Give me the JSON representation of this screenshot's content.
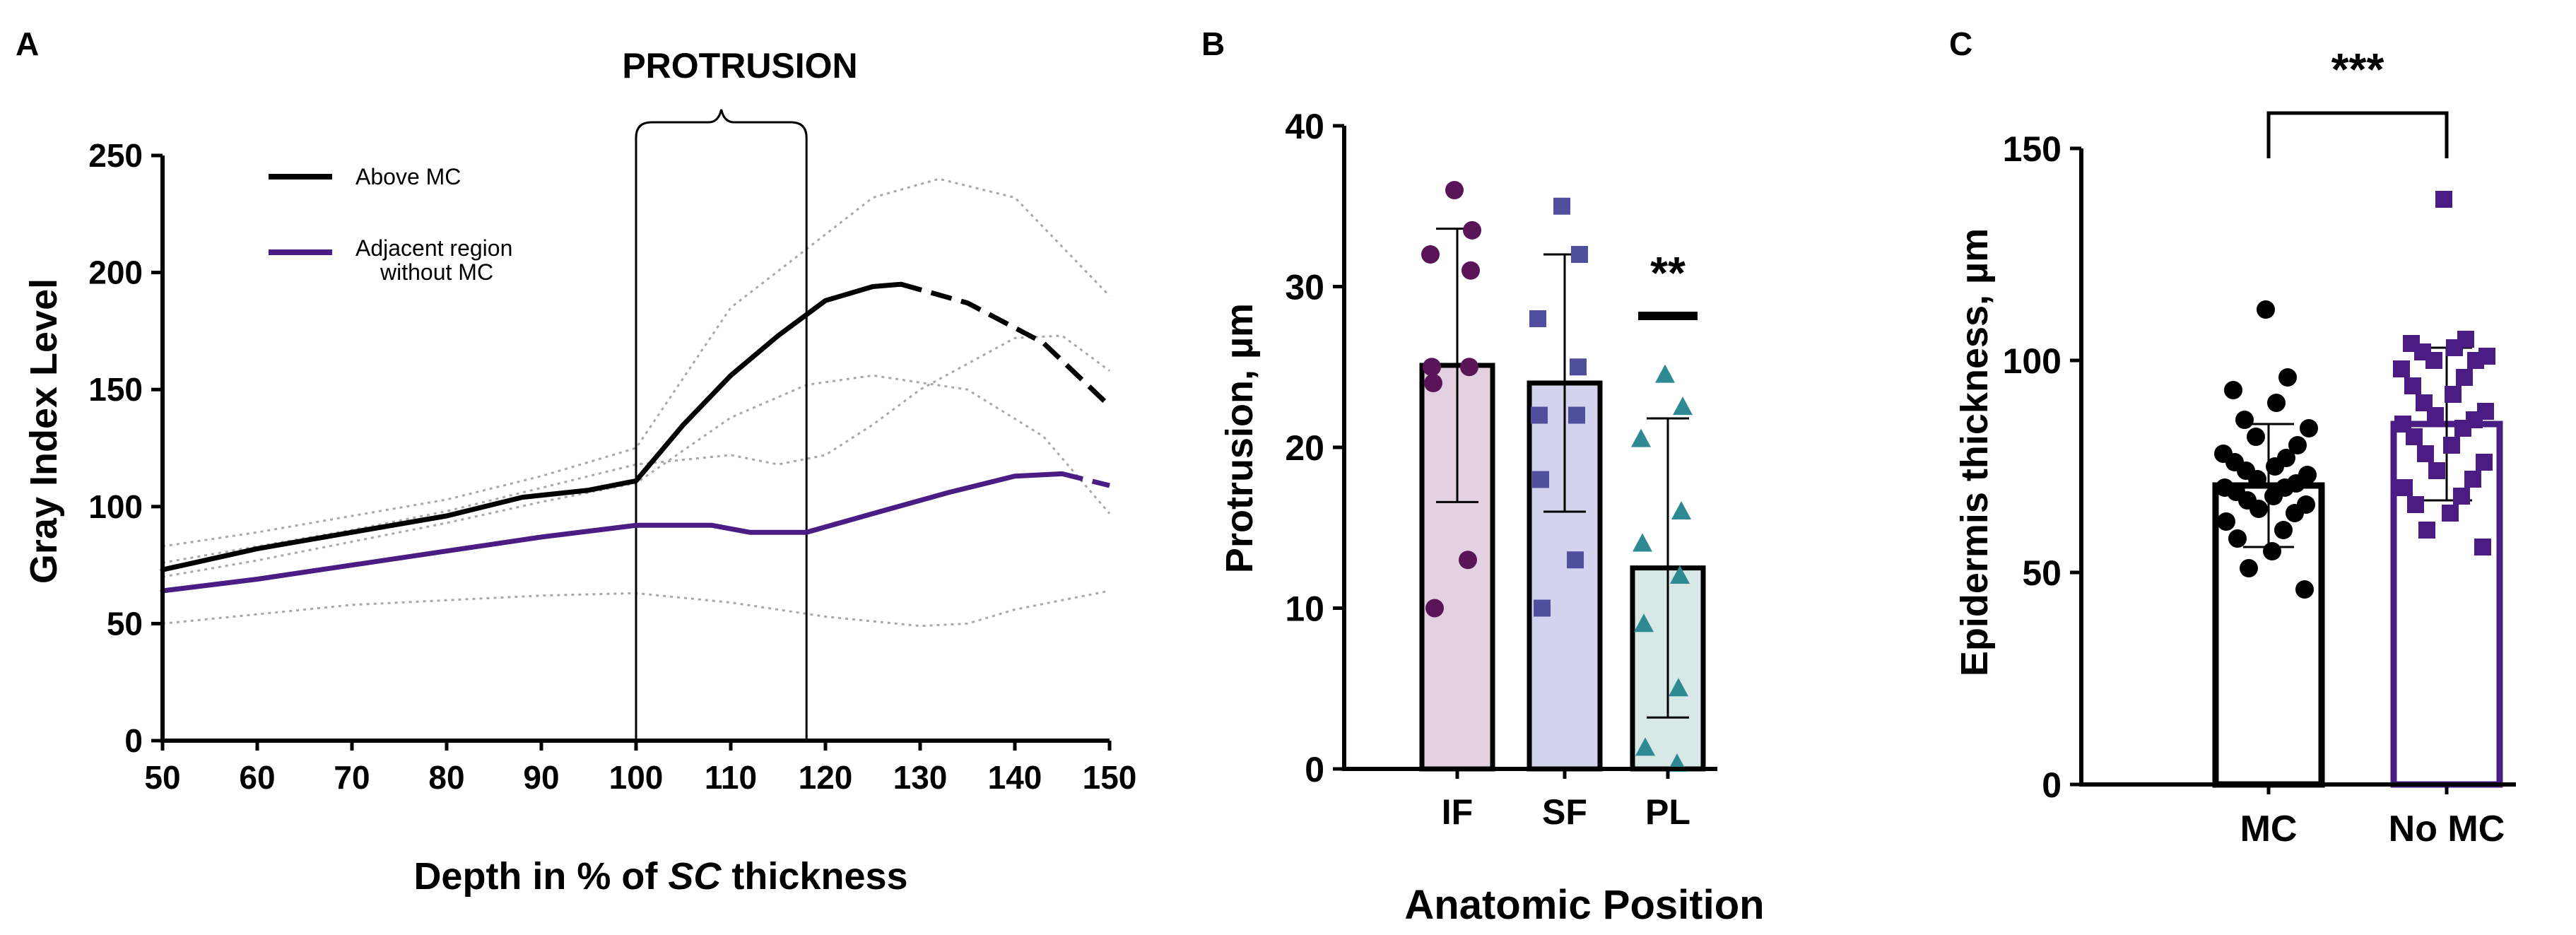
{
  "colors": {
    "black": "#000000",
    "purple": "#4b1d84",
    "grey": "#a8a8a8",
    "if_dark": "#5a1559",
    "if_fill": "#e3d0e0",
    "sf_dark": "#4f4f9e",
    "sf_fill": "#d3d3ee",
    "pl_dark": "#2e8a92",
    "pl_fill": "#d7e8e6",
    "nomc_dark": "#4b1d84"
  },
  "panels": {
    "a": {
      "letter": "A"
    },
    "b": {
      "letter": "B"
    },
    "c": {
      "letter": "C"
    }
  },
  "chart_data": [
    {
      "id": "A",
      "type": "line",
      "annotation": "PROTRUSION",
      "protrusion_range": [
        100,
        118
      ],
      "xlabel_parts": [
        "Depth in % of ",
        "SC",
        " thickness"
      ],
      "ylabel": "Gray Index Level",
      "xlim": [
        50,
        150
      ],
      "ylim": [
        0,
        250
      ],
      "xticks": [
        50,
        60,
        70,
        80,
        90,
        100,
        110,
        120,
        130,
        140,
        150
      ],
      "yticks": [
        0,
        50,
        100,
        150,
        200,
        250
      ],
      "legend": [
        "Above MC",
        "Adjacent region",
        "without MC"
      ],
      "series": [
        {
          "name": "Above MC",
          "color": "#000000",
          "x": [
            50,
            60,
            70,
            80,
            88,
            95,
            100,
            105,
            110,
            115,
            120,
            125,
            128
          ],
          "y": [
            73,
            82,
            89,
            96,
            104,
            107,
            111,
            135,
            156,
            173,
            188,
            194,
            195
          ],
          "dashed_x": [
            128,
            135,
            143,
            150
          ],
          "dashed_y": [
            195,
            187,
            170,
            143
          ]
        },
        {
          "name": "Adjacent region without MC",
          "color": "#4b1d84",
          "x": [
            50,
            60,
            70,
            80,
            90,
            100,
            108,
            112,
            118,
            125,
            133,
            140,
            145
          ],
          "y": [
            64,
            69,
            75,
            81,
            87,
            92,
            92,
            89,
            89,
            97,
            106,
            113,
            114
          ],
          "dashed_x": [
            145,
            150
          ],
          "dashed_y": [
            114,
            109
          ]
        }
      ],
      "ref_curves": [
        {
          "x": [
            50,
            60,
            70,
            80,
            90,
            100,
            110,
            118,
            125,
            132,
            140,
            150
          ],
          "y": [
            83,
            89,
            96,
            103,
            113,
            125,
            185,
            210,
            232,
            240,
            232,
            190
          ]
        },
        {
          "x": [
            50,
            60,
            70,
            80,
            90,
            100,
            110,
            115,
            120,
            125,
            130,
            140,
            145,
            150
          ],
          "y": [
            76,
            83,
            90,
            98,
            108,
            118,
            122,
            118,
            122,
            135,
            150,
            172,
            173,
            158
          ]
        },
        {
          "x": [
            50,
            60,
            70,
            80,
            90,
            100,
            110,
            118,
            125,
            135,
            143,
            150
          ],
          "y": [
            70,
            77,
            85,
            93,
            102,
            110,
            138,
            152,
            156,
            150,
            130,
            97
          ]
        },
        {
          "x": [
            50,
            60,
            70,
            80,
            90,
            100,
            110,
            120,
            130,
            135,
            140,
            150
          ],
          "y": [
            50,
            54,
            58,
            60,
            62,
            63,
            59,
            53,
            49,
            50,
            56,
            64
          ]
        }
      ]
    },
    {
      "id": "B",
      "type": "bar",
      "xlabel": "Anatomic Position",
      "ylabel": "Protrusion, µm",
      "ylim": [
        0,
        40
      ],
      "yticks": [
        0,
        10,
        20,
        30,
        40
      ],
      "categories": [
        "IF",
        "SF",
        "PL"
      ],
      "means": [
        25.1,
        24.0,
        12.5
      ],
      "sd": [
        8.5,
        8.0,
        9.3
      ],
      "points": [
        [
          36,
          33.5,
          32,
          31,
          25,
          25,
          24,
          13,
          10
        ],
        [
          35,
          32,
          28,
          25,
          22,
          22,
          18,
          13,
          10
        ],
        [
          24.5,
          22.5,
          20.5,
          16,
          14,
          12,
          9,
          5,
          1.3,
          0.3
        ]
      ],
      "significance": "**"
    },
    {
      "id": "C",
      "type": "bar",
      "xlabel": "",
      "ylabel": "Epidermis thickness, µm",
      "ylim": [
        0,
        150
      ],
      "yticks": [
        0,
        50,
        100,
        150
      ],
      "categories": [
        "MC",
        "No MC"
      ],
      "means": [
        70.5,
        85
      ],
      "sd": [
        14.5,
        18
      ],
      "points": [
        [
          112,
          96,
          93,
          90,
          86,
          84,
          82,
          80,
          78,
          77,
          76,
          75,
          74,
          73,
          72,
          71,
          70,
          70,
          69,
          68,
          67,
          66,
          65,
          64,
          62,
          60,
          58,
          55,
          51,
          46
        ],
        [
          138,
          105,
          104,
          103,
          102,
          101,
          100,
          100,
          98,
          96,
          94,
          92,
          90,
          88,
          87,
          86,
          85,
          84,
          82,
          80,
          78,
          76,
          74,
          72,
          70,
          68,
          66,
          64,
          60,
          56
        ]
      ],
      "significance": "***"
    }
  ]
}
